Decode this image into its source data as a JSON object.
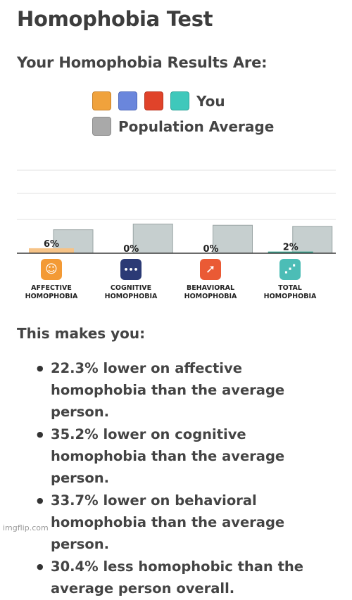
{
  "page": {
    "title": "Homophobia Test",
    "subtitle": "Your Homophobia Results Are:",
    "watermark": "imgflip.com"
  },
  "legend": {
    "you_label": "You",
    "population_label": "Population Average",
    "you_colors": [
      "#f0a23c",
      "#6a86dc",
      "#e0432a",
      "#3fc8bb"
    ],
    "population_color": "#a9a9a9"
  },
  "chart_data": {
    "type": "bar",
    "categories": [
      "AFFECTIVE HOMOPHOBIA",
      "COGNITIVE HOMOPHOBIA",
      "BEHAVIORAL HOMOPHOBIA",
      "TOTAL HOMOPHOBIA"
    ],
    "series": [
      {
        "name": "You",
        "values": [
          6,
          0,
          0,
          2
        ],
        "labels": [
          "6%",
          "0%",
          "0%",
          "2%"
        ],
        "colors": [
          "#f6c387",
          "#8aa0e2",
          "#e8826d",
          "#3aa48f"
        ]
      },
      {
        "name": "Population Average",
        "values": [
          28.3,
          35.2,
          33.7,
          32.4
        ],
        "color": "#c6cfcf"
      }
    ],
    "ylim": [
      0,
      100
    ],
    "grid": true
  },
  "icons": [
    {
      "name": "mask-icon",
      "glyph": "☺",
      "color": "#f39a35"
    },
    {
      "name": "thought-bubble-icon",
      "glyph": "•••",
      "color": "#2b3a75"
    },
    {
      "name": "running-person-icon",
      "glyph": "➚",
      "color": "#ea5a35"
    },
    {
      "name": "network-graph-icon",
      "glyph": "⋰",
      "color": "#4cbdb6"
    }
  ],
  "results": {
    "heading": "This makes you:",
    "items": [
      "22.3% lower on affective homophobia than the average person.",
      "35.2% lower on cognitive homophobia than the average person.",
      "33.7% lower on behavioral homophobia than the average person.",
      "30.4% less homophobic than the average person overall."
    ]
  }
}
